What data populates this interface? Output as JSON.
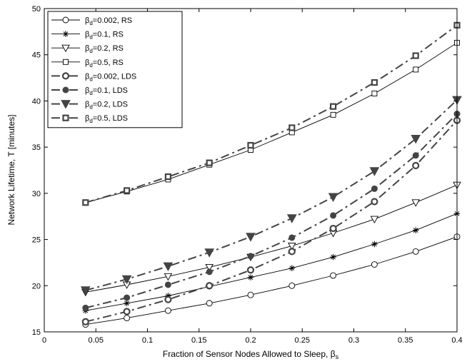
{
  "chart_data": {
    "type": "line",
    "xlabel": "Fraction of Sensor Nodes Allowed to Sleep, β",
    "xlabel_sub": "s",
    "ylabel": "Network Lifetime, T [minutes]",
    "xlim": [
      0,
      0.4
    ],
    "ylim": [
      15,
      50
    ],
    "xticks": [
      0,
      0.05,
      0.1,
      0.15,
      0.2,
      0.25,
      0.3,
      0.35,
      0.4
    ],
    "xtick_labels": [
      "0",
      "0.05",
      "0.1",
      "0.15",
      "0.2",
      "0.25",
      "0.3",
      "0.35",
      "0.4"
    ],
    "yticks": [
      15,
      20,
      25,
      30,
      35,
      40,
      45,
      50
    ],
    "ytick_labels": [
      "15",
      "20",
      "25",
      "30",
      "35",
      "40",
      "45",
      "50"
    ],
    "grid": false,
    "legend_position": "top-left",
    "x": [
      0.04,
      0.08,
      0.12,
      0.16,
      0.2,
      0.24,
      0.28,
      0.32,
      0.36,
      0.4
    ],
    "series": [
      {
        "name": "β",
        "sub": "d",
        "suffix": "=0.002, RS",
        "marker": "circle",
        "style": "solid",
        "values": [
          15.8,
          16.5,
          17.3,
          18.1,
          19.0,
          20.0,
          21.1,
          22.3,
          23.7,
          25.3
        ]
      },
      {
        "name": "β",
        "sub": "d",
        "suffix": "=0.1, RS",
        "marker": "star",
        "style": "solid",
        "values": [
          17.3,
          18.1,
          18.9,
          19.9,
          20.9,
          21.9,
          23.1,
          24.5,
          26.0,
          27.8
        ]
      },
      {
        "name": "β",
        "sub": "d",
        "suffix": "=0.2, RS",
        "marker": "triangle-down",
        "style": "solid",
        "values": [
          19.3,
          20.1,
          21.0,
          22.0,
          23.1,
          24.3,
          25.7,
          27.2,
          29.0,
          30.9
        ]
      },
      {
        "name": "β",
        "sub": "d",
        "suffix": "=0.5, RS",
        "marker": "square",
        "style": "solid",
        "values": [
          29.0,
          30.2,
          31.5,
          33.1,
          34.7,
          36.6,
          38.5,
          40.8,
          43.4,
          46.3
        ]
      },
      {
        "name": "β",
        "sub": "d",
        "suffix": "=0.002, LDS",
        "marker": "circle-bold",
        "style": "dashdot",
        "values": [
          16.1,
          17.2,
          18.5,
          20.0,
          21.7,
          23.7,
          26.2,
          29.1,
          33.0,
          37.9
        ]
      },
      {
        "name": "β",
        "sub": "d",
        "suffix": "=0.1, LDS",
        "marker": "circle-filled",
        "style": "dashdot",
        "values": [
          17.6,
          18.7,
          20.1,
          21.5,
          23.2,
          25.2,
          27.6,
          30.5,
          34.1,
          38.6
        ]
      },
      {
        "name": "β",
        "sub": "d",
        "suffix": "=0.2, LDS",
        "marker": "triangle-filled",
        "style": "dashdot",
        "values": [
          19.5,
          20.7,
          22.1,
          23.6,
          25.3,
          27.3,
          29.6,
          32.4,
          35.9,
          40.1
        ]
      },
      {
        "name": "β",
        "sub": "d",
        "suffix": "=0.5, LDS",
        "marker": "square-bold",
        "style": "dashdot",
        "values": [
          29.0,
          30.3,
          31.8,
          33.3,
          35.2,
          37.1,
          39.4,
          42.0,
          44.9,
          48.2
        ]
      }
    ]
  }
}
